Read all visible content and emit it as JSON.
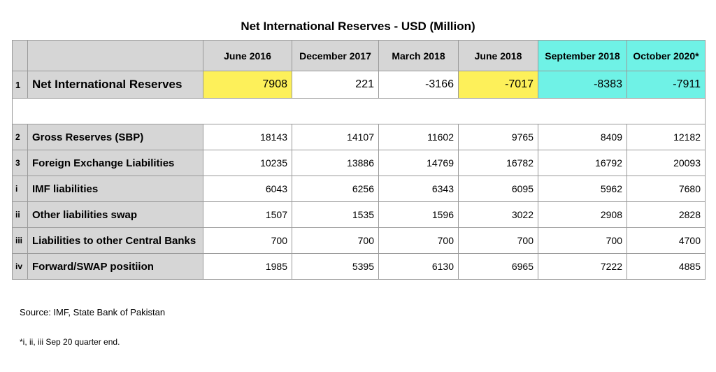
{
  "title": "Net International Reserves - USD (Million)",
  "columns": [
    "June 2016",
    "December 2017",
    "March 2018",
    "June 2018",
    "September 2018",
    "October 2020*"
  ],
  "rows": [
    {
      "idx": "1",
      "label": "Net International Reserves",
      "values": [
        "7908",
        "221",
        "-3166",
        "-7017",
        "-8383",
        "-7911"
      ]
    },
    {
      "idx": "2",
      "label": "Gross Reserves (SBP)",
      "values": [
        "18143",
        "14107",
        "11602",
        "9765",
        "8409",
        "12182"
      ]
    },
    {
      "idx": "3",
      "label": "Foreign Exchange Liabilities",
      "values": [
        "10235",
        "13886",
        "14769",
        "16782",
        "16792",
        "20093"
      ]
    },
    {
      "idx": "i",
      "label": "IMF liabilities",
      "values": [
        "6043",
        "6256",
        "6343",
        "6095",
        "5962",
        "7680"
      ]
    },
    {
      "idx": "ii",
      "label": "Other liabilities swap",
      "values": [
        "1507",
        "1535",
        "1596",
        "3022",
        "2908",
        "2828"
      ]
    },
    {
      "idx": "iii",
      "label": "Liabilities to other Central Banks",
      "values": [
        "700",
        "700",
        "700",
        "700",
        "700",
        "4700"
      ]
    },
    {
      "idx": "iv",
      "label": "Forward/SWAP positiion",
      "values": [
        "1985",
        "5395",
        "6130",
        "6965",
        "7222",
        "4885"
      ]
    }
  ],
  "highlight_colors": {
    "yellow": "#fdf05a",
    "cyan": "#6ff2e6",
    "header_gray": "#d6d6d6"
  },
  "source": "Source: IMF, State Bank of Pakistan",
  "footnote": "*i, ii, iii Sep 20 quarter end."
}
